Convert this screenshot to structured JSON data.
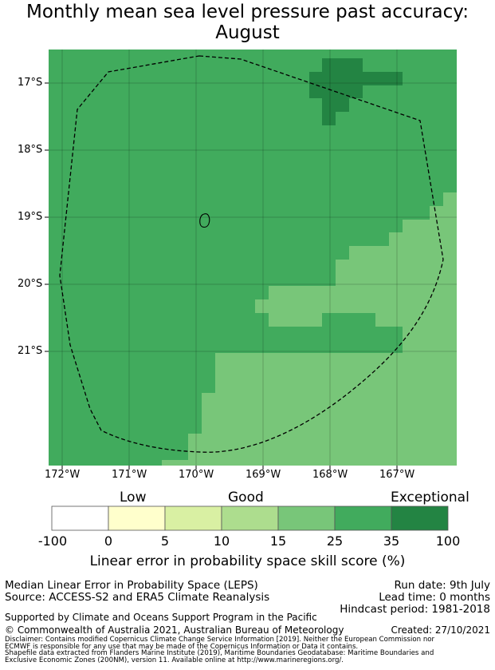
{
  "title": {
    "line1": "Monthly mean sea level pressure past accuracy:",
    "line2": "August"
  },
  "map": {
    "lat_ticks": [
      "17°S",
      "18°S",
      "19°S",
      "20°S",
      "21°S"
    ],
    "lon_ticks": [
      "172°W",
      "171°W",
      "170°W",
      "169°W",
      "168°W",
      "167°W"
    ],
    "colors": {
      "band_15_25": "#78c679",
      "band_25_35": "#41ab5d",
      "band_35_100": "#238443",
      "boundary": "#000000"
    }
  },
  "legend": {
    "category_labels": [
      "Low",
      "Good",
      "Exceptional"
    ],
    "tick_labels": [
      "-100",
      "0",
      "5",
      "10",
      "15",
      "25",
      "35",
      "100"
    ],
    "bins": [
      {
        "range": "-100 to 0",
        "color": "#ffffff"
      },
      {
        "range": "0 to 5",
        "color": "#ffffcc"
      },
      {
        "range": "5 to 10",
        "color": "#d9f0a3"
      },
      {
        "range": "10 to 15",
        "color": "#addd8e"
      },
      {
        "range": "15 to 25",
        "color": "#78c679"
      },
      {
        "range": "25 to 35",
        "color": "#41ab5d"
      },
      {
        "range": "35 to 100",
        "color": "#238443"
      }
    ],
    "title": "Linear error in probability space skill score (%)"
  },
  "info": {
    "product": "Median Linear Error in Probability Space (LEPS)",
    "source": "Source: ACCESS-S2 and ERA5 Climate Reanalysis",
    "run_date": "Run date: 9th July",
    "lead_time": "Lead time: 0 months",
    "hindcast": "Hindcast period: 1981-2018",
    "support": "Supported by Climate and Oceans Support Program in the Pacific",
    "copyright": "© Commonwealth of Australia 2021, Australian Bureau of Meteorology",
    "created": "Created: 27/10/2021",
    "disclaimer_1": "Disclaimer: Contains modified Copernicus Climate Change Service Information [2019]. Neither the European Commission nor",
    "disclaimer_2": "ECMWF is responsible for any use that may be made of the Copernicus Information or Data it contains.",
    "shapefile_1": "Shapefile data extracted from Flanders Marine Institute (2019), Maritime Boundaries Geodatabase: Maritime Boundaries and",
    "shapefile_2": "Exclusive Economic Zones (200NM), version 11. Available online at http://www.marineregions.org/."
  }
}
